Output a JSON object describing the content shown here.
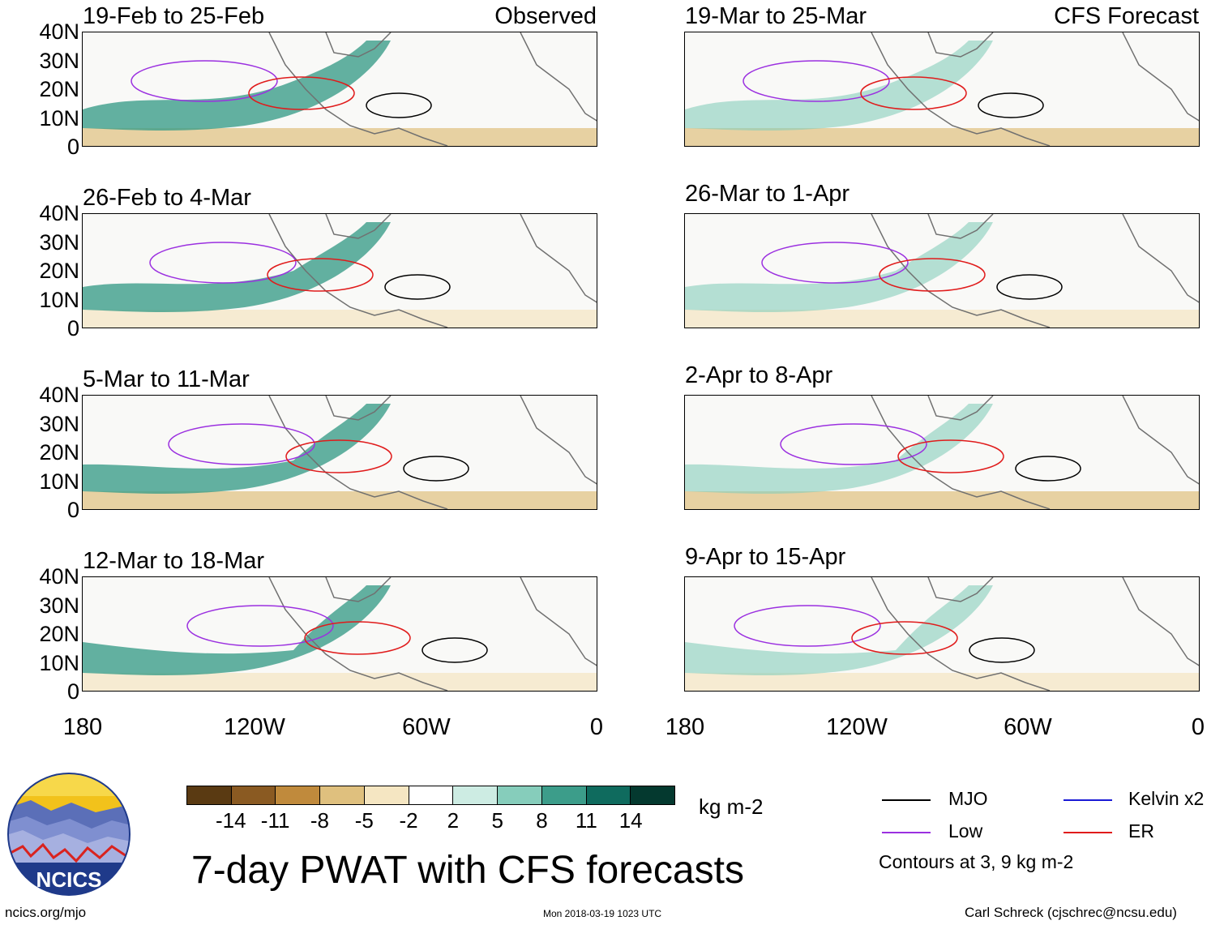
{
  "panels": [
    {
      "title": "19-Feb to 25-Feb",
      "tag": "Observed",
      "col": "left"
    },
    {
      "title": "26-Feb to 4-Mar",
      "tag": "",
      "col": "left"
    },
    {
      "title": "5-Mar to 11-Mar",
      "tag": "",
      "col": "left"
    },
    {
      "title": "12-Mar to 18-Mar",
      "tag": "",
      "col": "left"
    },
    {
      "title": "19-Mar to 25-Mar",
      "tag": "CFS Forecast",
      "col": "right"
    },
    {
      "title": "26-Mar to 1-Apr",
      "tag": "",
      "col": "right"
    },
    {
      "title": "2-Apr to 8-Apr",
      "tag": "",
      "col": "right"
    },
    {
      "title": "9-Apr to 15-Apr",
      "tag": "",
      "col": "right"
    }
  ],
  "lat_labels": [
    "40N",
    "30N",
    "20N",
    "10N",
    "0"
  ],
  "lon_labels": [
    "180",
    "120W",
    "60W",
    "0"
  ],
  "colorbar": {
    "unit": "kg m-2",
    "ticks": [
      "-14",
      "-11",
      "-8",
      "-5",
      "-2",
      "2",
      "5",
      "8",
      "11",
      "14"
    ],
    "colors": [
      "#5a3a12",
      "#8a5a22",
      "#c08a3c",
      "#dfc07e",
      "#f5e6c2",
      "#ffffff",
      "#cdece3",
      "#86cdbb",
      "#3c9d8a",
      "#0f6b5e",
      "#04392f"
    ]
  },
  "legend": {
    "items": [
      {
        "label": "MJO",
        "color": "#000000"
      },
      {
        "label": "Kelvin x2",
        "color": "#1a1ad6"
      },
      {
        "label": "Low",
        "color": "#9b30e0"
      },
      {
        "label": "ER",
        "color": "#e01b1b"
      }
    ],
    "note": "Contours at 3, 9 kg m-2"
  },
  "logo_text": "NCICS",
  "main_title": "7-day PWAT with CFS forecasts",
  "footer": {
    "left": "ncics.org/mjo",
    "center": "Mon 2018-03-19 1023 UTC",
    "right": "Carl Schreck (cjschrec@ncsu.edu)"
  }
}
